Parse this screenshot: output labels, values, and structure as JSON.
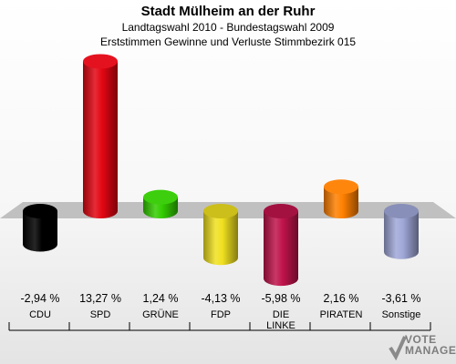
{
  "header": {
    "title": "Stadt Mülheim an der Ruhr",
    "subtitle1": "Landtagswahl 2010 - Bundestagswahl 2009",
    "subtitle2": "Erststimmen Gewinne und Verluste Stimmbezirk 015"
  },
  "logo": {
    "line1": "VOTE",
    "line2": "MANAGER"
  },
  "chart_data": {
    "type": "bar",
    "categories": [
      "CDU",
      "SPD",
      "GRÜNE",
      "FDP",
      "DIE LINKE",
      "PIRATEN",
      "Sonstige"
    ],
    "values": [
      -2.94,
      13.27,
      1.24,
      -4.13,
      -5.98,
      2.16,
      -3.61
    ],
    "value_labels": [
      "-2,94 %",
      "13,27 %",
      "1,24 %",
      "-4,13 %",
      "-5,98 %",
      "2,16 %",
      "-3,61 %"
    ],
    "colors": [
      "#000000",
      "#e30613",
      "#33cc00",
      "#f0e020",
      "#c0144c",
      "#ff8000",
      "#a0a8d8"
    ]
  }
}
